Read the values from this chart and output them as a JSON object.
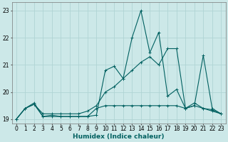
{
  "xlabel": "Humidex (Indice chaleur)",
  "bg_color": "#cce8e8",
  "grid_color": "#b0d4d4",
  "line_color": "#006060",
  "xlim": [
    -0.5,
    23.5
  ],
  "ylim": [
    18.85,
    23.3
  ],
  "yticks": [
    19,
    20,
    21,
    22,
    23
  ],
  "xticks": [
    0,
    1,
    2,
    3,
    4,
    5,
    6,
    7,
    8,
    9,
    10,
    11,
    12,
    13,
    14,
    15,
    16,
    17,
    18,
    19,
    20,
    21,
    22,
    23
  ],
  "series1_x": [
    0,
    1,
    2,
    3,
    4,
    5,
    6,
    7,
    8,
    9,
    10,
    11,
    12,
    13,
    14,
    15,
    16,
    17,
    18,
    19,
    20,
    21,
    22,
    23
  ],
  "series1_y": [
    19.0,
    19.4,
    19.6,
    19.1,
    19.15,
    19.1,
    19.1,
    19.1,
    19.1,
    19.15,
    20.8,
    20.95,
    20.5,
    22.0,
    23.0,
    21.45,
    22.2,
    19.85,
    20.1,
    19.4,
    19.6,
    19.4,
    19.3,
    19.2
  ],
  "series2_x": [
    0,
    1,
    2,
    3,
    4,
    5,
    6,
    7,
    8,
    9,
    10,
    11,
    12,
    13,
    14,
    15,
    16,
    17,
    18,
    19,
    20,
    21,
    22,
    23
  ],
  "series2_y": [
    19.0,
    19.4,
    19.55,
    19.2,
    19.2,
    19.2,
    19.2,
    19.2,
    19.3,
    19.5,
    20.0,
    20.2,
    20.5,
    20.8,
    21.1,
    21.3,
    21.0,
    21.6,
    21.6,
    19.4,
    19.5,
    21.35,
    19.4,
    19.2
  ],
  "series3_x": [
    0,
    1,
    2,
    3,
    4,
    5,
    6,
    7,
    8,
    9,
    10,
    11,
    12,
    13,
    14,
    15,
    16,
    17,
    18,
    19,
    20,
    21,
    22,
    23
  ],
  "series3_y": [
    19.0,
    19.4,
    19.55,
    19.1,
    19.1,
    19.1,
    19.1,
    19.1,
    19.1,
    19.4,
    19.5,
    19.5,
    19.5,
    19.5,
    19.5,
    19.5,
    19.5,
    19.5,
    19.5,
    19.4,
    19.5,
    19.4,
    19.35,
    19.2
  ]
}
